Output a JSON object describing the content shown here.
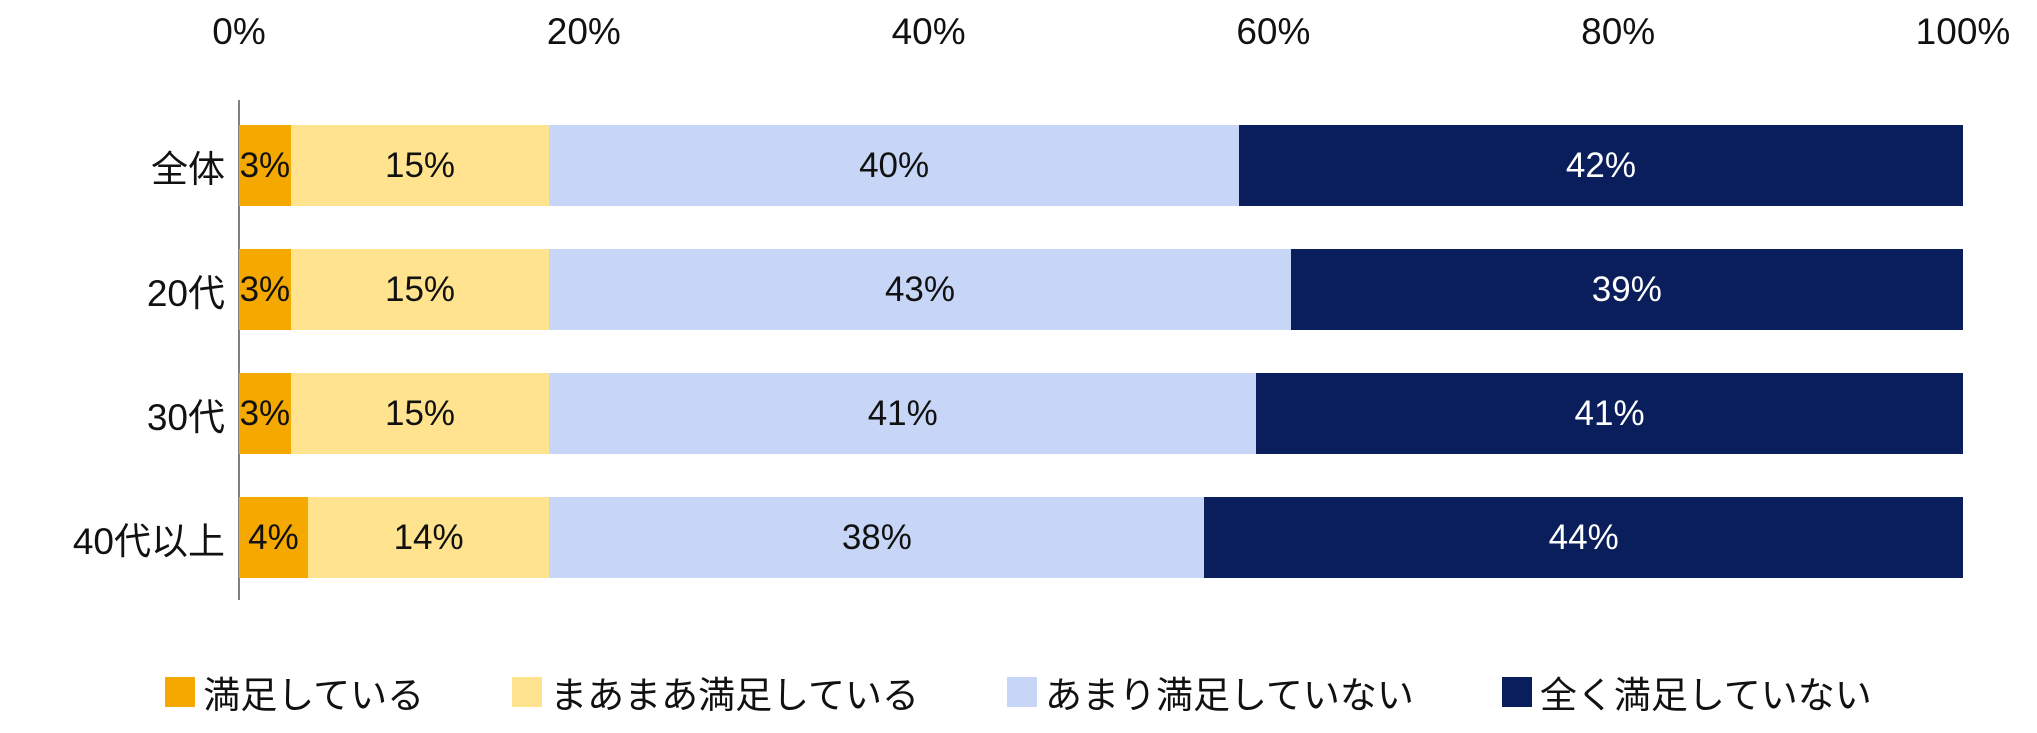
{
  "chart_data": {
    "type": "bar",
    "orientation": "horizontal",
    "stacked": true,
    "title": "",
    "categories": [
      "全体",
      "20代",
      "30代",
      "40代以上"
    ],
    "series": [
      {
        "name": "満足している",
        "color": "#F4A800",
        "label_color": "#111111",
        "values": [
          3,
          3,
          3,
          4
        ]
      },
      {
        "name": "まあまあ満足している",
        "color": "#FFE38F",
        "label_color": "#111111",
        "values": [
          15,
          15,
          15,
          14
        ]
      },
      {
        "name": "あまり満足していない",
        "color": "#C7D6F7",
        "label_color": "#111111",
        "values": [
          40,
          43,
          41,
          38
        ]
      },
      {
        "name": "全く満足していない",
        "color": "#0A1E5C",
        "label_color": "#ffffff",
        "values": [
          42,
          39,
          41,
          44
        ]
      }
    ],
    "x_ticks": [
      "0%",
      "20%",
      "40%",
      "60%",
      "80%",
      "100%"
    ],
    "x_range": [
      0,
      100
    ],
    "value_suffix": "%",
    "legend_position": "bottom",
    "grid": false,
    "axis_line_color": "#808080"
  }
}
